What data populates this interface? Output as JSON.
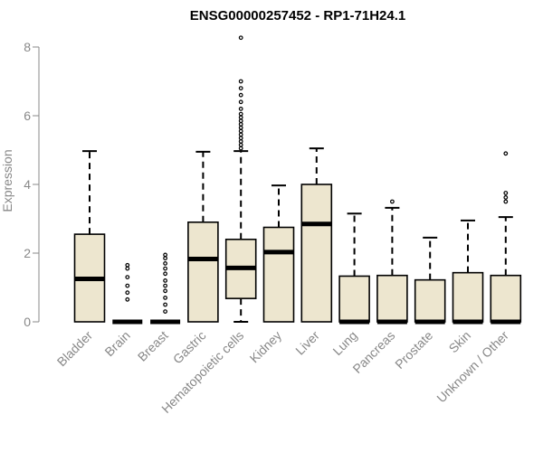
{
  "chart_data": {
    "type": "box",
    "title": "ENSG00000257452 - RP1-71H24.1",
    "xlabel": "",
    "ylabel": "Expression",
    "ylim": [
      0,
      8.3
    ],
    "yticks": [
      0,
      2,
      4,
      6,
      8
    ],
    "grid": false,
    "box_fill": "#ede6cf",
    "median_color": "#000000",
    "axis_color": "#888888",
    "categories": [
      "Bladder",
      "Brain",
      "Breast",
      "Gastric",
      "Hematopoietic cells",
      "Kidney",
      "Liver",
      "Lung",
      "Pancreas",
      "Prostate",
      "Skin",
      "Unknown / Other"
    ],
    "boxes": [
      {
        "whisker_low": 0,
        "q1": 0,
        "median": 1.25,
        "q3": 2.55,
        "whisker_high": 4.97,
        "outliers": []
      },
      {
        "whisker_low": 0,
        "q1": 0,
        "median": 0,
        "q3": 0,
        "whisker_high": 0,
        "outliers": [
          0.65,
          0.85,
          1.05,
          1.3,
          1.55,
          1.65
        ]
      },
      {
        "whisker_low": 0,
        "q1": 0,
        "median": 0,
        "q3": 0,
        "whisker_high": 0,
        "outliers": [
          0.3,
          0.5,
          0.7,
          0.9,
          1.05,
          1.2,
          1.4,
          1.55,
          1.7,
          1.85,
          1.95
        ]
      },
      {
        "whisker_low": 0,
        "q1": 0,
        "median": 1.83,
        "q3": 2.9,
        "whisker_high": 4.95,
        "outliers": []
      },
      {
        "whisker_low": 0,
        "q1": 0.68,
        "median": 1.57,
        "q3": 2.4,
        "whisker_high": 4.97,
        "outliers": [
          5.05,
          5.15,
          5.25,
          5.35,
          5.45,
          5.55,
          5.65,
          5.75,
          5.85,
          5.95,
          6.05,
          6.2,
          6.4,
          6.6,
          6.8,
          7.0,
          8.27
        ]
      },
      {
        "whisker_low": 0,
        "q1": 0,
        "median": 2.03,
        "q3": 2.75,
        "whisker_high": 3.97,
        "outliers": []
      },
      {
        "whisker_low": 0,
        "q1": 0,
        "median": 2.85,
        "q3": 4.0,
        "whisker_high": 5.05,
        "outliers": []
      },
      {
        "whisker_low": 0,
        "q1": 0,
        "median": 0,
        "q3": 1.33,
        "whisker_high": 3.15,
        "outliers": []
      },
      {
        "whisker_low": 0,
        "q1": 0,
        "median": 0,
        "q3": 1.35,
        "whisker_high": 3.32,
        "outliers": [
          3.5
        ]
      },
      {
        "whisker_low": 0,
        "q1": 0,
        "median": 0,
        "q3": 1.22,
        "whisker_high": 2.45,
        "outliers": []
      },
      {
        "whisker_low": 0,
        "q1": 0,
        "median": 0,
        "q3": 1.43,
        "whisker_high": 2.95,
        "outliers": []
      },
      {
        "whisker_low": 0,
        "q1": 0,
        "median": 0,
        "q3": 1.35,
        "whisker_high": 3.05,
        "outliers": [
          3.5,
          3.62,
          3.75,
          4.9
        ]
      }
    ]
  }
}
